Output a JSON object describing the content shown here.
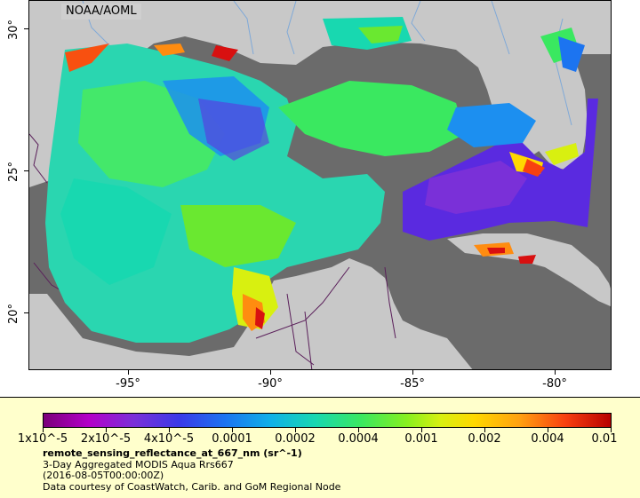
{
  "map": {
    "credit": "NOAA/AOML",
    "lat_labels": [
      "30°",
      "25°",
      "20°"
    ],
    "lon_labels": [
      "-95°",
      "-90°",
      "-85°",
      "-80°"
    ],
    "extent": {
      "lon_min": -97.8,
      "lon_max": -78.0,
      "lat_min": 18.0,
      "lat_max": 30.9
    },
    "colors": {
      "land": "#c8c8c8",
      "no_data": "#6b6b6b",
      "rivers": "#7fa9d8",
      "borders": "#5a1f5a"
    }
  },
  "legend": {
    "colorbar_ticks": [
      "1x10^-5",
      "2x10^-5",
      "4x10^-5",
      "0.0001",
      "0.0002",
      "0.0004",
      "0.001",
      "0.002",
      "0.004",
      "0.01"
    ],
    "title": "remote_sensing_reflectance_at_667_nm (sr^-1)",
    "line1": "3-Day Aggregated MODIS Aqua Rrs667",
    "line2": "(2016-08-05T00:00:00Z)",
    "line3": "Data courtesy of CoastWatch, Carib. and GoM Regional Node",
    "scale": "log",
    "range": [
      1e-05,
      0.01
    ]
  }
}
